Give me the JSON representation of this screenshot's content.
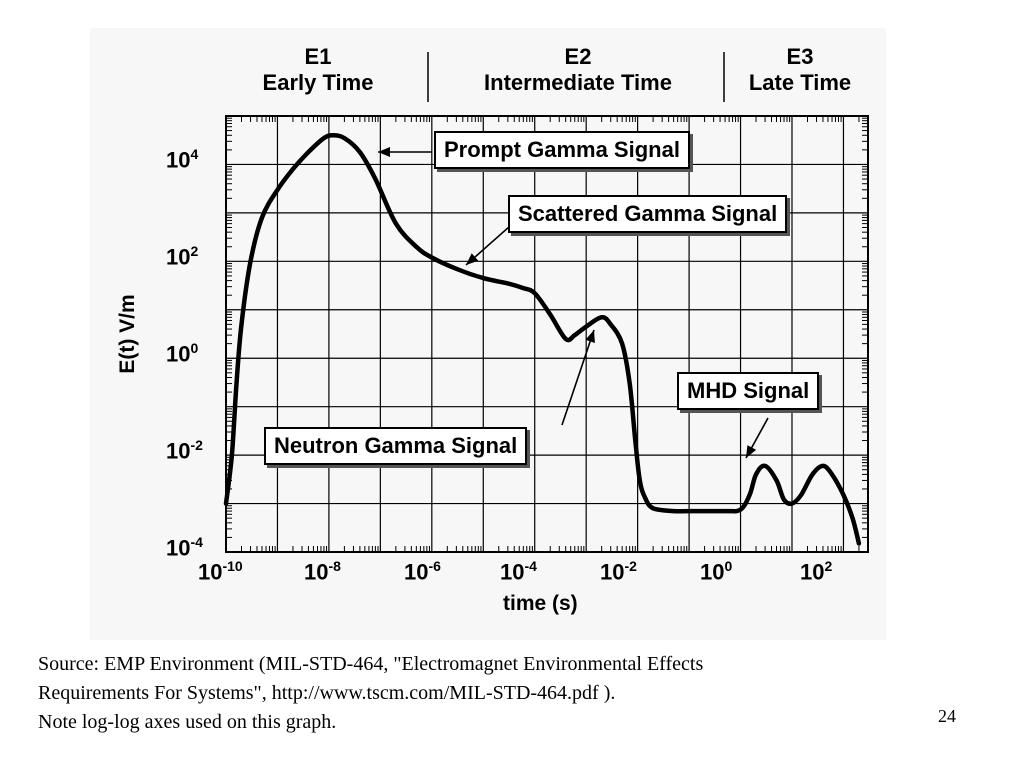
{
  "chart_data": {
    "type": "line",
    "title": "",
    "xlabel": "time (s)",
    "ylabel": "E(t)   V/m",
    "x_scale": "log",
    "y_scale": "log",
    "xlim": [
      1e-10,
      300
    ],
    "ylim": [
      0.0001,
      100000
    ],
    "grid": true,
    "x_ticks": [
      {
        "base": "10",
        "exp": "-10"
      },
      {
        "base": "10",
        "exp": "-8"
      },
      {
        "base": "10",
        "exp": "-6"
      },
      {
        "base": "10",
        "exp": "-4"
      },
      {
        "base": "10",
        "exp": "-2"
      },
      {
        "base": "10",
        "exp": "0"
      },
      {
        "base": "10",
        "exp": "2"
      }
    ],
    "y_ticks": [
      {
        "base": "10",
        "exp": "4"
      },
      {
        "base": "10",
        "exp": "2"
      },
      {
        "base": "10",
        "exp": "0"
      },
      {
        "base": "10",
        "exp": "-2"
      },
      {
        "base": "10",
        "exp": "-4"
      }
    ],
    "regions": [
      {
        "code": "E1",
        "name": "Early Time"
      },
      {
        "code": "E2",
        "name": "Intermediate Time"
      },
      {
        "code": "E3",
        "name": "Late Time"
      }
    ],
    "annotations": [
      "Prompt Gamma Signal",
      "Scattered Gamma Signal",
      "Neutron Gamma Signal",
      "MHD Signal"
    ],
    "series": [
      {
        "x": [
          1e-10,
          1.3e-10,
          1.6e-10,
          2e-10,
          3e-10,
          5e-10,
          1e-09,
          2e-09,
          4e-09,
          8e-09,
          1.2e-08,
          2e-08,
          4e-08,
          8e-08,
          2e-07,
          5e-07,
          1e-06,
          3e-06,
          1e-05,
          3e-05,
          6e-05,
          0.0001,
          0.0002,
          0.0004,
          0.0006,
          0.001,
          0.002,
          0.003,
          0.005,
          0.007,
          0.009,
          0.011,
          0.014,
          0.02,
          0.05,
          0.1,
          0.5,
          1,
          1.5,
          2,
          3,
          5,
          7,
          10,
          15,
          25,
          40,
          60,
          100,
          150,
          200
        ],
        "y": [
          0.001,
          0.01,
          0.3,
          5,
          100,
          800,
          3000,
          8000,
          18000,
          35000,
          40000,
          35000,
          18000,
          5000,
          600,
          200,
          120,
          70,
          45,
          35,
          28,
          22,
          8,
          2.5,
          3,
          4.5,
          7,
          5,
          2,
          0.3,
          0.02,
          0.003,
          0.0013,
          0.0008,
          0.0007,
          0.0007,
          0.0007,
          0.00075,
          0.0015,
          0.004,
          0.006,
          0.003,
          0.0012,
          0.001,
          0.0015,
          0.004,
          0.006,
          0.004,
          0.0015,
          0.0005,
          0.00015
        ]
      }
    ]
  },
  "caption": {
    "line1": "Source: EMP Environment (MIL-STD-464, \"Electromagnet Environmental Effects",
    "line2": "Requirements For Systems\", http://www.tscm.com/MIL-STD-464.pdf ).",
    "line3": "Note log-log axes used on this graph."
  },
  "page_number": "24"
}
